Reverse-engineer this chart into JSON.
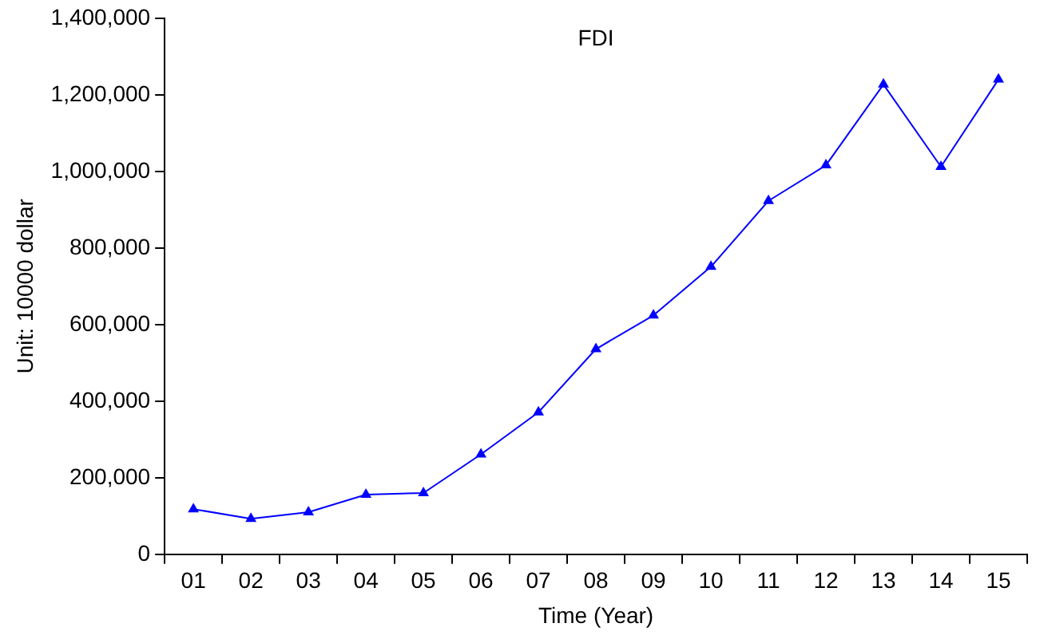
{
  "chart_data": {
    "type": "line",
    "title": "FDI",
    "xlabel": "Time (Year)",
    "ylabel": "Unit: 10000 dollar",
    "categories": [
      "01",
      "02",
      "03",
      "04",
      "05",
      "06",
      "07",
      "08",
      "09",
      "10",
      "11",
      "12",
      "13",
      "14",
      "15"
    ],
    "series": [
      {
        "color": "#0000ff",
        "values": [
          118000,
          93000,
          110000,
          156000,
          160000,
          261000,
          371000,
          536000,
          624000,
          751000,
          923000,
          1016000,
          1227000,
          1012000,
          1240000
        ]
      }
    ],
    "ylim": [
      0,
      1400000
    ],
    "yticks": [
      0,
      {
        "value": 200000,
        "label": "200,000"
      },
      {
        "value": 400000,
        "label": "400,000"
      },
      {
        "value": 600000,
        "label": "600,000"
      },
      {
        "value": 800000,
        "label": "800,000"
      },
      {
        "value": 1000000,
        "label": "1,000,000"
      },
      {
        "value": 1200000,
        "label": "1,200,000"
      },
      {
        "value": 1400000,
        "label": "1,400,000"
      }
    ],
    "grid": false,
    "legend": false,
    "marker": "triangle",
    "line_style": "solid"
  }
}
